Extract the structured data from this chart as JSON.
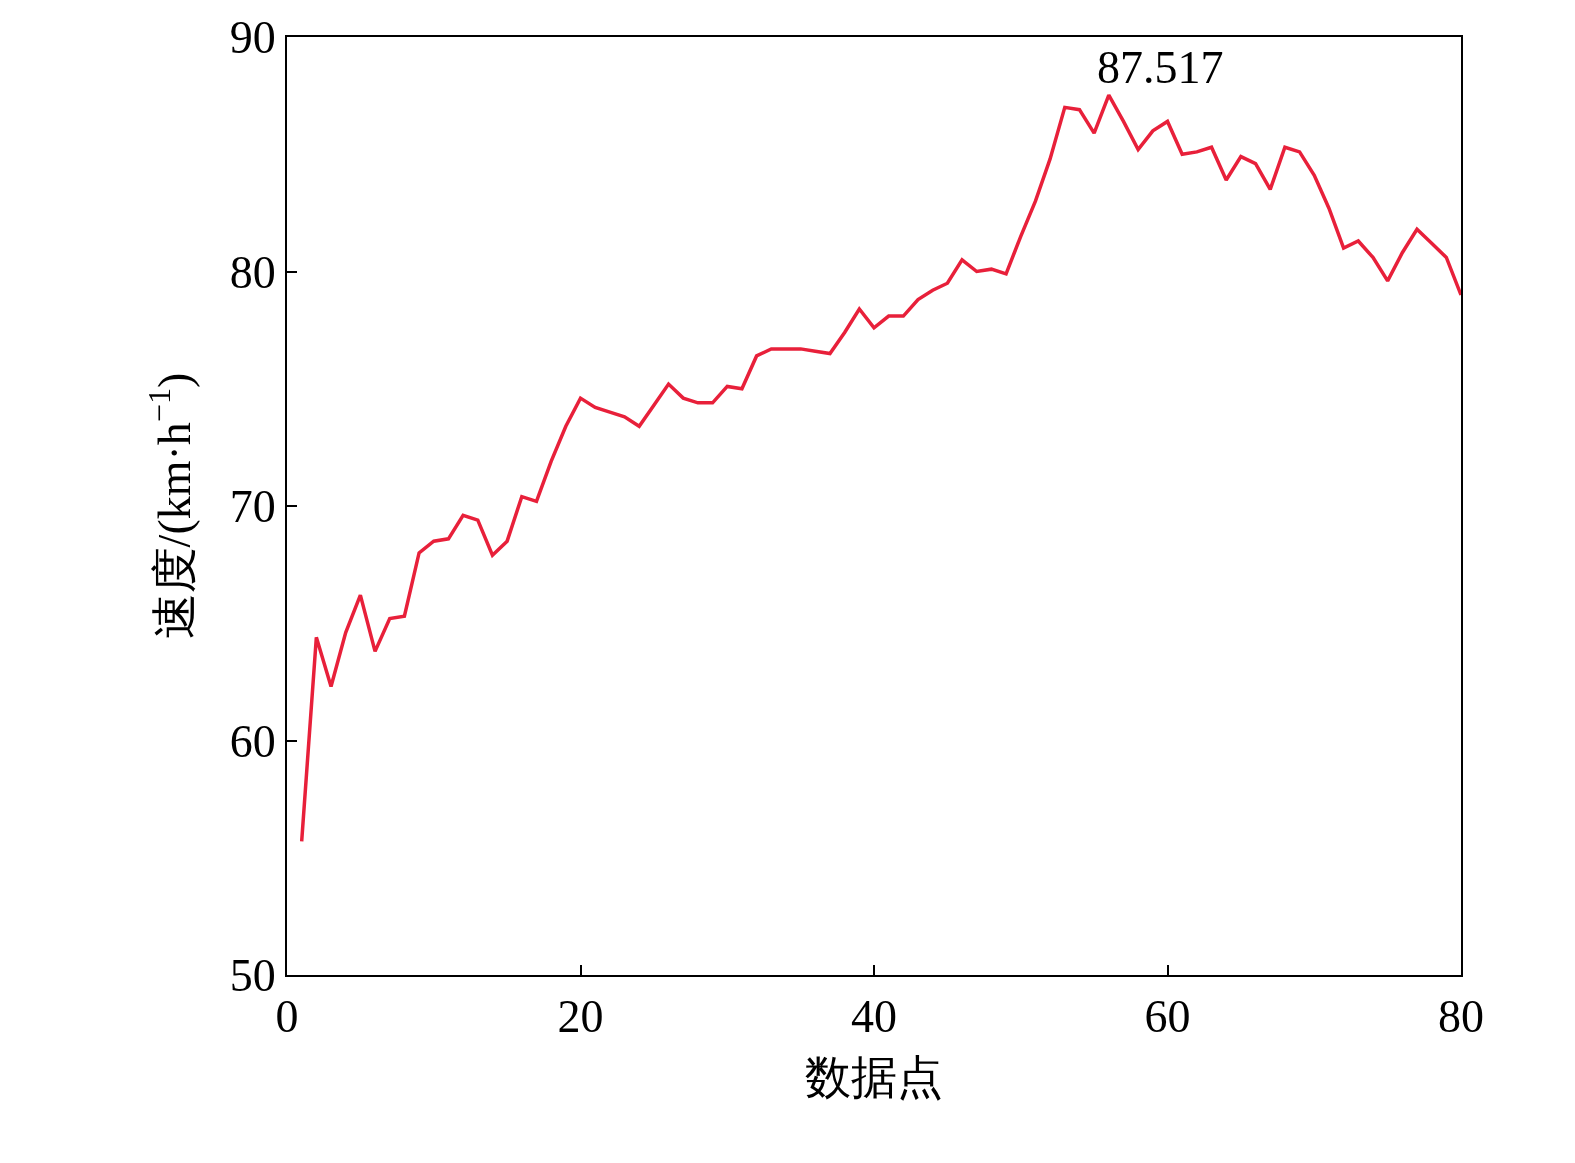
{
  "chart_data": {
    "type": "line",
    "xlabel": "数据点",
    "ylabel": "速度/(km·h$^{−1}$)",
    "x": [
      1,
      2,
      3,
      4,
      5,
      6,
      7,
      8,
      9,
      10,
      11,
      12,
      13,
      14,
      15,
      16,
      17,
      18,
      19,
      20,
      21,
      22,
      23,
      24,
      25,
      26,
      27,
      28,
      29,
      30,
      31,
      32,
      33,
      34,
      35,
      36,
      37,
      38,
      39,
      40,
      41,
      42,
      43,
      44,
      45,
      46,
      47,
      48,
      49,
      50,
      51,
      52,
      53,
      54,
      55,
      56,
      57,
      58,
      59,
      60,
      61,
      62,
      63,
      64,
      65,
      66,
      67,
      68,
      69,
      70,
      71,
      72,
      73,
      74,
      75,
      76,
      77,
      78,
      79,
      80
    ],
    "series": [
      {
        "color": "#e8203a",
        "values": [
          55.7,
          64.4,
          62.3,
          64.6,
          66.2,
          63.8,
          65.2,
          65.3,
          68.0,
          68.5,
          68.6,
          69.6,
          69.4,
          67.9,
          68.5,
          70.4,
          70.2,
          71.9,
          73.4,
          74.6,
          74.2,
          74.0,
          73.8,
          73.4,
          74.3,
          75.2,
          74.6,
          74.4,
          74.4,
          75.1,
          75.0,
          76.4,
          76.7,
          76.7,
          76.7,
          76.6,
          76.5,
          77.4,
          78.4,
          77.6,
          78.1,
          78.1,
          78.8,
          79.2,
          79.5,
          80.5,
          80.0,
          80.1,
          79.9,
          81.5,
          83.0,
          84.8,
          87.0,
          86.9,
          85.9,
          87.517,
          86.4,
          85.2,
          86.0,
          86.4,
          85.0,
          85.1,
          85.3,
          83.9,
          84.9,
          84.6,
          83.5,
          85.3,
          85.1,
          84.1,
          82.7,
          81.0,
          81.3,
          80.6,
          79.6,
          80.8,
          81.8,
          81.2,
          80.6,
          79.0
        ]
      }
    ],
    "xlim": [
      0,
      80
    ],
    "xticks": [
      0,
      20,
      40,
      60,
      80
    ],
    "ylim": [
      50,
      90
    ],
    "yticks": [
      50,
      60,
      70,
      80,
      90
    ],
    "marker": "none",
    "line_style": "solid",
    "annotations": [
      {
        "text": "87.517",
        "x": 56,
        "y": 87.517
      }
    ]
  }
}
